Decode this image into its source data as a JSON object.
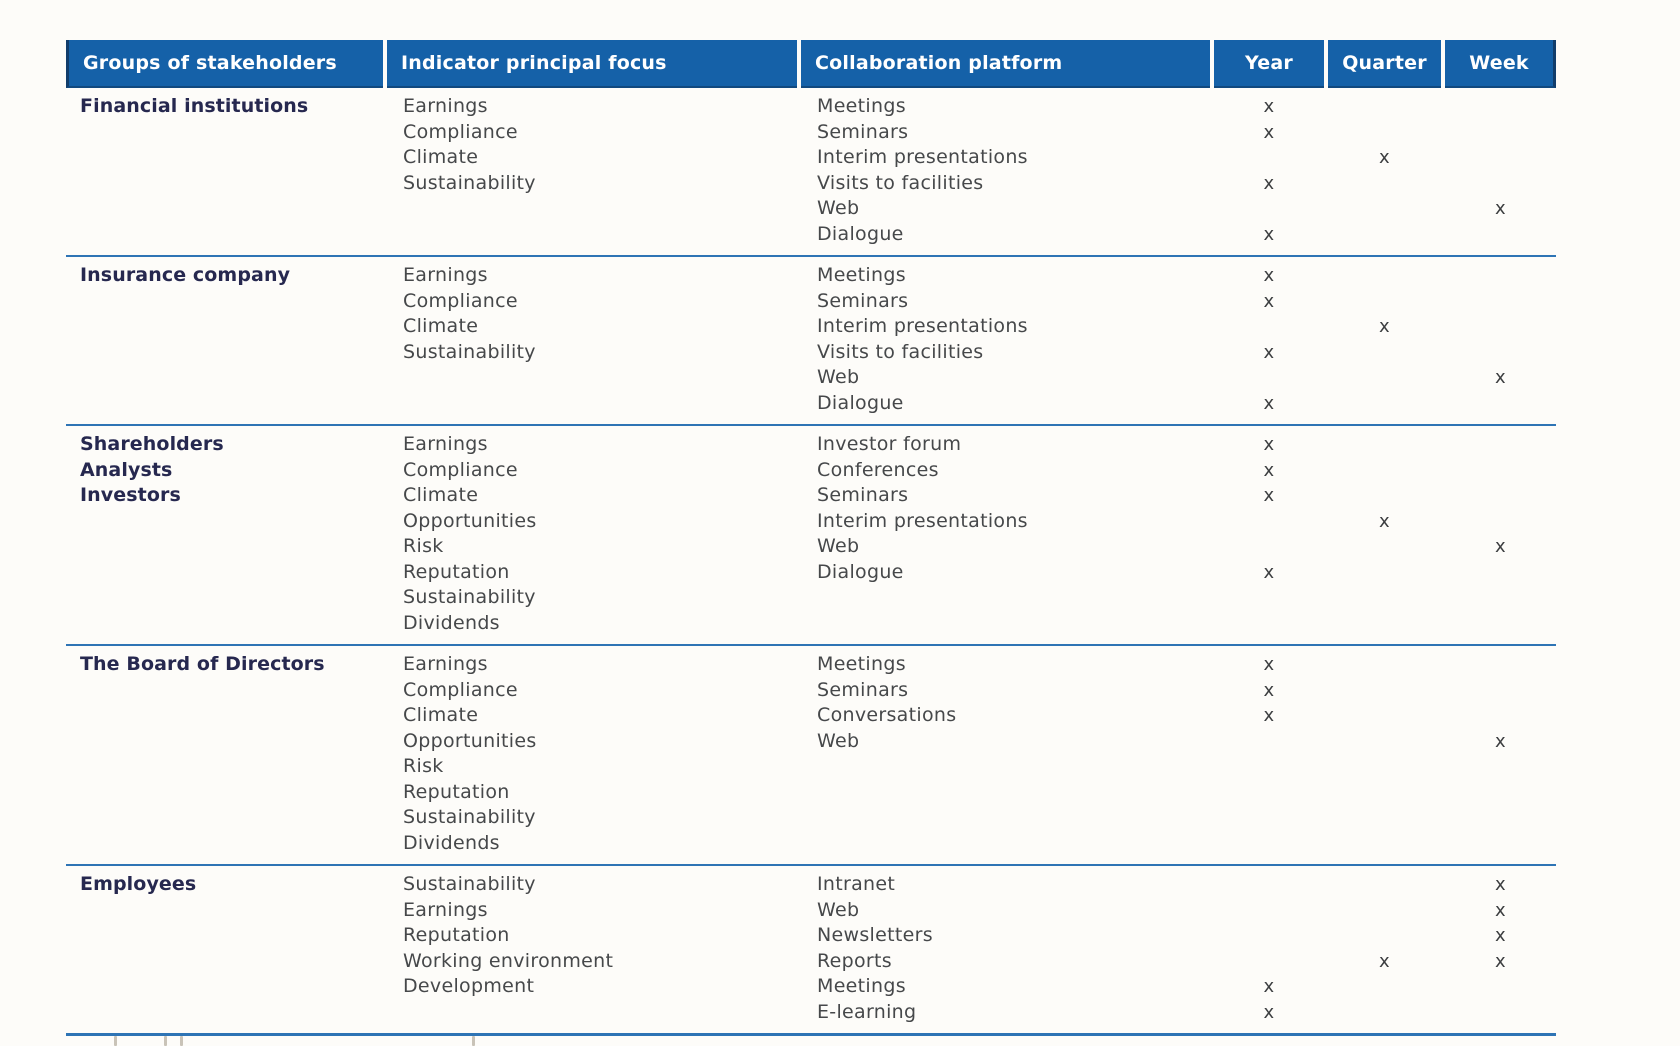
{
  "page": {
    "background_color": "#fdfcf9"
  },
  "table": {
    "accent_color": "#1561a8",
    "separator_color": "#2e74b5",
    "mark_symbol": "x",
    "columns": [
      {
        "id": "stakeholders",
        "label": "Groups of stakeholders"
      },
      {
        "id": "indicators",
        "label": "Indicator principal focus"
      },
      {
        "id": "platforms",
        "label": "Collaboration platform"
      },
      {
        "id": "year",
        "label": "Year"
      },
      {
        "id": "quarter",
        "label": "Quarter"
      },
      {
        "id": "week",
        "label": "Week"
      }
    ],
    "groups": [
      {
        "stakeholders": [
          "Financial institutions"
        ],
        "indicators": [
          "Earnings",
          "Compliance",
          "Climate",
          "Sustainability"
        ],
        "platforms": [
          {
            "name": "Meetings",
            "marks": [
              "year"
            ]
          },
          {
            "name": "Seminars",
            "marks": [
              "year"
            ]
          },
          {
            "name": "Interim presentations",
            "marks": [
              "quarter"
            ]
          },
          {
            "name": "Visits to facilities",
            "marks": [
              "year"
            ]
          },
          {
            "name": "Web",
            "marks": [
              "week"
            ]
          },
          {
            "name": "Dialogue",
            "marks": [
              "year"
            ]
          }
        ]
      },
      {
        "stakeholders": [
          "Insurance company"
        ],
        "indicators": [
          "Earnings",
          "Compliance",
          "Climate",
          "Sustainability"
        ],
        "platforms": [
          {
            "name": "Meetings",
            "marks": [
              "year"
            ]
          },
          {
            "name": "Seminars",
            "marks": [
              "year"
            ]
          },
          {
            "name": "Interim presentations",
            "marks": [
              "quarter"
            ]
          },
          {
            "name": "Visits to facilities",
            "marks": [
              "year"
            ]
          },
          {
            "name": "Web",
            "marks": [
              "week"
            ]
          },
          {
            "name": "Dialogue",
            "marks": [
              "year"
            ]
          }
        ]
      },
      {
        "stakeholders": [
          "Shareholders",
          "Analysts",
          "Investors"
        ],
        "indicators": [
          "Earnings",
          "Compliance",
          "Climate",
          "Opportunities",
          "Risk",
          "Reputation",
          "Sustainability",
          "Dividends"
        ],
        "platforms": [
          {
            "name": "Investor forum",
            "marks": [
              "year"
            ]
          },
          {
            "name": "Conferences",
            "marks": [
              "year"
            ]
          },
          {
            "name": "Seminars",
            "marks": [
              "year"
            ]
          },
          {
            "name": "Interim presentations",
            "marks": [
              "quarter"
            ]
          },
          {
            "name": "Web",
            "marks": [
              "week"
            ]
          },
          {
            "name": "Dialogue",
            "marks": [
              "year"
            ]
          }
        ]
      },
      {
        "stakeholders": [
          "The Board of Directors"
        ],
        "indicators": [
          "Earnings",
          "Compliance",
          "Climate",
          "Opportunities",
          "Risk",
          "Reputation",
          "Sustainability",
          "Dividends"
        ],
        "platforms": [
          {
            "name": "Meetings",
            "marks": [
              "year"
            ]
          },
          {
            "name": "Seminars",
            "marks": [
              "year"
            ]
          },
          {
            "name": "Conversations",
            "marks": [
              "year"
            ]
          },
          {
            "name": "Web",
            "marks": [
              "week"
            ]
          }
        ]
      },
      {
        "stakeholders": [
          "Employees"
        ],
        "indicators": [
          "Sustainability",
          "Earnings",
          "Reputation",
          "Working environment",
          "Development"
        ],
        "platforms": [
          {
            "name": "Intranet",
            "marks": [
              "week"
            ]
          },
          {
            "name": "Web",
            "marks": [
              "week"
            ]
          },
          {
            "name": "Newsletters",
            "marks": [
              "week"
            ]
          },
          {
            "name": "Reports",
            "marks": [
              "quarter",
              "week"
            ]
          },
          {
            "name": "Meetings",
            "marks": [
              "year"
            ]
          },
          {
            "name": "E-learning",
            "marks": [
              "year"
            ]
          }
        ]
      }
    ]
  },
  "bottom_cutoff_marks_x": [
    114,
    164,
    180,
    472
  ]
}
